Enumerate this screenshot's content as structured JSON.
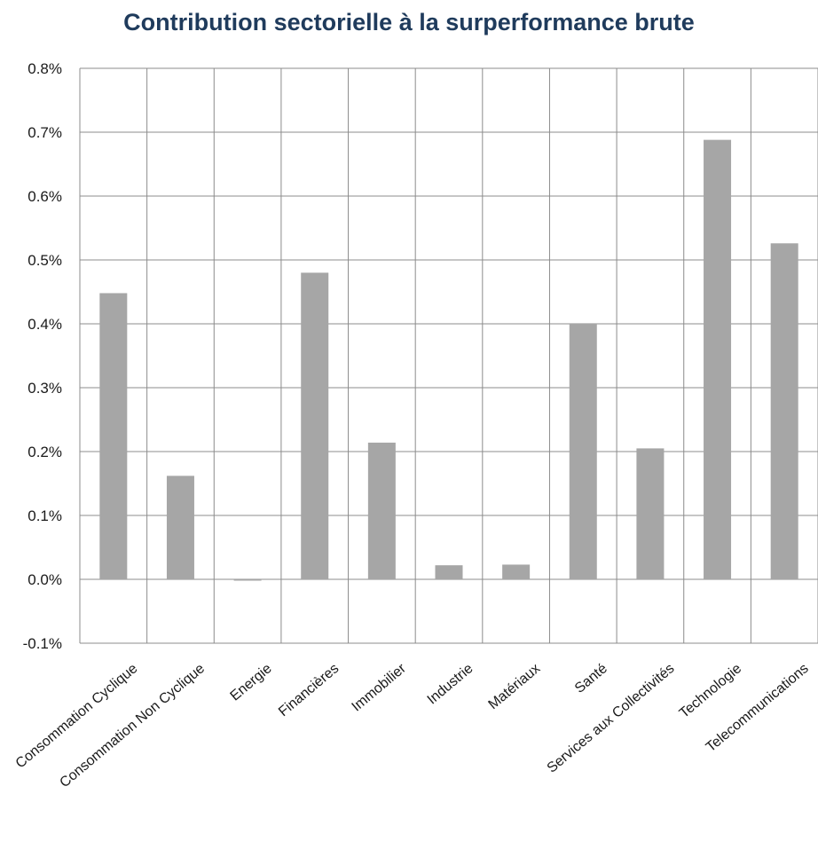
{
  "chart_data": {
    "type": "bar",
    "title": "Contribution sectorielle à la surperformance brute",
    "xlabel": "",
    "ylabel": "",
    "ylim": [
      -0.1,
      0.8
    ],
    "ytick_values": [
      -0.1,
      0.0,
      0.1,
      0.2,
      0.3,
      0.4,
      0.5,
      0.6,
      0.7,
      0.8
    ],
    "ytick_labels": [
      "-0.1%",
      "0.0%",
      "0.1%",
      "0.2%",
      "0.3%",
      "0.4%",
      "0.5%",
      "0.6%",
      "0.7%",
      "0.8%"
    ],
    "grid": true,
    "bar_color": "#a6a6a6",
    "categories": [
      "Consommation Cyclique",
      "Consommation Non Cyclique",
      "Energie",
      "Financières",
      "Immobilier",
      "Industrie",
      "Matériaux",
      "Santé",
      "Services aux Collectivités",
      "Technologie",
      "Telecommunications"
    ],
    "values": [
      0.448,
      0.162,
      -0.002,
      0.48,
      0.214,
      0.022,
      0.023,
      0.4,
      0.205,
      0.688,
      0.526
    ]
  }
}
